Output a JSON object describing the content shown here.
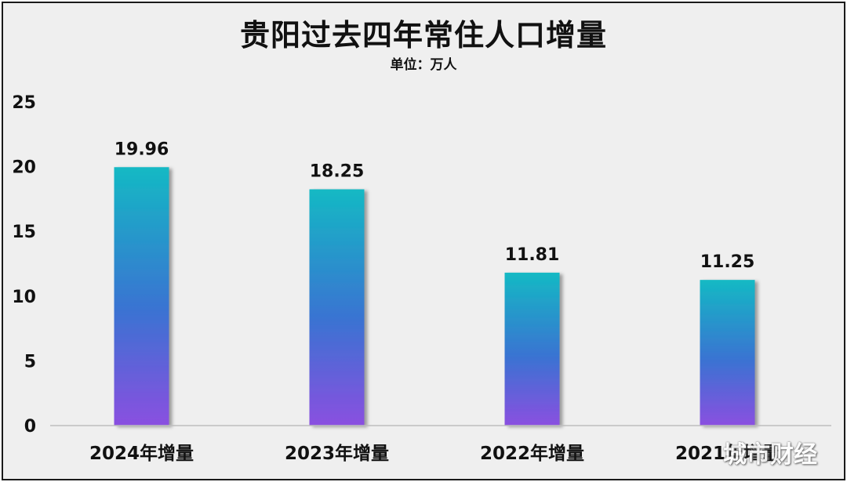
{
  "title": "贵阳过去四年常住人口增量",
  "subtitle": "单位：万人",
  "watermark": "城市财经",
  "chart_data": {
    "type": "bar",
    "title": "贵阳过去四年常住人口增量",
    "subtitle": "单位：万人",
    "categories": [
      "2024年增量",
      "2023年增量",
      "2022年增量",
      "2021年增量"
    ],
    "values": [
      19.96,
      18.25,
      11.81,
      11.25
    ],
    "value_labels": [
      "19.96",
      "18.25",
      "11.81",
      "11.25"
    ],
    "ylim": [
      0,
      25
    ],
    "yticks": [
      0,
      5,
      10,
      15,
      20,
      25
    ],
    "grid": false,
    "legend": "none",
    "colors": {
      "bar_top": "#14b9c4",
      "bar_mid": "#3a73d2",
      "bar_bottom": "#8a4fe0",
      "axis": "#bdbdbd",
      "text": "#111111"
    }
  }
}
